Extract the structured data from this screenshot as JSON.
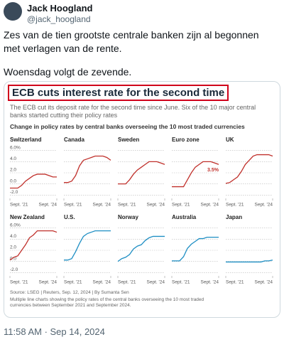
{
  "tweet": {
    "name": "Jack Hoogland",
    "handle": "@jack_hoogland",
    "text": "Zes van de tien grootste centrale banken zijn al begonnen met verlagen van de rente.",
    "text2": "Woensdag volgt de zevende.",
    "timestamp": "11:58 AM · Sep 14, 2024"
  },
  "chart_data": {
    "type": "line",
    "title": "ECB cuts interest rate for the second time",
    "subtitle": "The ECB cut its deposit rate for the second time since June. Six of the 10 major central banks started cutting their policy rates",
    "heading": "Change in policy rates by central banks overseeing the 10 most traded currencies",
    "source": "Source: LSEG | Reuters, Sep. 12, 2024 | By Sumanta Sen",
    "note": "Multiple line charts showing the policy rates of the central banks overseeing the 10 most traded currencies between September 2021 and September 2024.",
    "x": [
      "2021-09",
      "2021-12",
      "2022-03",
      "2022-06",
      "2022-09",
      "2022-12",
      "2023-03",
      "2023-06",
      "2023-09",
      "2023-12",
      "2024-03",
      "2024-06",
      "2024-09"
    ],
    "xlim": [
      "2021-09",
      "2024-09"
    ],
    "xticks": [
      {
        "value": "2021-09",
        "label": "Sept. '21"
      },
      {
        "value": "2024-09",
        "label": "Sept. '24"
      }
    ],
    "ylim": [
      -2.6,
      6.6
    ],
    "yticks": [
      {
        "value": -2,
        "label": "-2.0"
      },
      {
        "value": 0,
        "label": "0.0"
      },
      {
        "value": 2,
        "label": "2.0"
      },
      {
        "value": 4,
        "label": "4.0"
      },
      {
        "value": 6,
        "label": "6.0%"
      }
    ],
    "grid": true,
    "series": [
      {
        "name": "Switzerland",
        "color": "#c0302b",
        "values": [
          -0.75,
          -0.75,
          -0.75,
          -0.25,
          0.5,
          1.0,
          1.5,
          1.75,
          1.75,
          1.75,
          1.5,
          1.25,
          1.25
        ]
      },
      {
        "name": "Canada",
        "color": "#c0302b",
        "values": [
          0.25,
          0.25,
          0.5,
          1.5,
          3.25,
          4.25,
          4.5,
          4.75,
          5.0,
          5.0,
          5.0,
          4.75,
          4.25
        ]
      },
      {
        "name": "Sweden",
        "color": "#c0302b",
        "values": [
          0,
          0,
          0,
          0.75,
          1.75,
          2.5,
          3.0,
          3.5,
          4.0,
          4.0,
          4.0,
          3.75,
          3.5
        ]
      },
      {
        "name": "Euro zone",
        "color": "#c0302b",
        "values": [
          -0.5,
          -0.5,
          -0.5,
          -0.5,
          0.75,
          2.0,
          3.0,
          3.5,
          4.0,
          4.0,
          4.0,
          3.75,
          3.5
        ],
        "annotation": "3.5%"
      },
      {
        "name": "UK",
        "color": "#c0302b",
        "values": [
          0.1,
          0.25,
          0.75,
          1.25,
          2.25,
          3.5,
          4.25,
          5.0,
          5.25,
          5.25,
          5.25,
          5.25,
          5.0
        ]
      },
      {
        "name": "New Zealand",
        "color": "#c0302b",
        "values": [
          0.25,
          0.75,
          1.0,
          2.0,
          3.0,
          4.25,
          4.75,
          5.5,
          5.5,
          5.5,
          5.5,
          5.5,
          5.25
        ]
      },
      {
        "name": "U.S.",
        "color": "#1f8fc4",
        "values": [
          0.25,
          0.25,
          0.5,
          1.75,
          3.25,
          4.5,
          5.0,
          5.25,
          5.5,
          5.5,
          5.5,
          5.5,
          5.5
        ]
      },
      {
        "name": "Norway",
        "color": "#1f8fc4",
        "values": [
          0.0,
          0.5,
          0.75,
          1.25,
          2.25,
          2.75,
          3.0,
          3.75,
          4.25,
          4.5,
          4.5,
          4.5,
          4.5
        ]
      },
      {
        "name": "Australia",
        "color": "#1f8fc4",
        "values": [
          0.1,
          0.1,
          0.1,
          0.85,
          2.35,
          3.1,
          3.6,
          4.1,
          4.1,
          4.35,
          4.35,
          4.35,
          4.35
        ]
      },
      {
        "name": "Japan",
        "color": "#1f8fc4",
        "values": [
          -0.1,
          -0.1,
          -0.1,
          -0.1,
          -0.1,
          -0.1,
          -0.1,
          -0.1,
          -0.1,
          -0.1,
          0.1,
          0.1,
          0.25
        ]
      }
    ]
  }
}
